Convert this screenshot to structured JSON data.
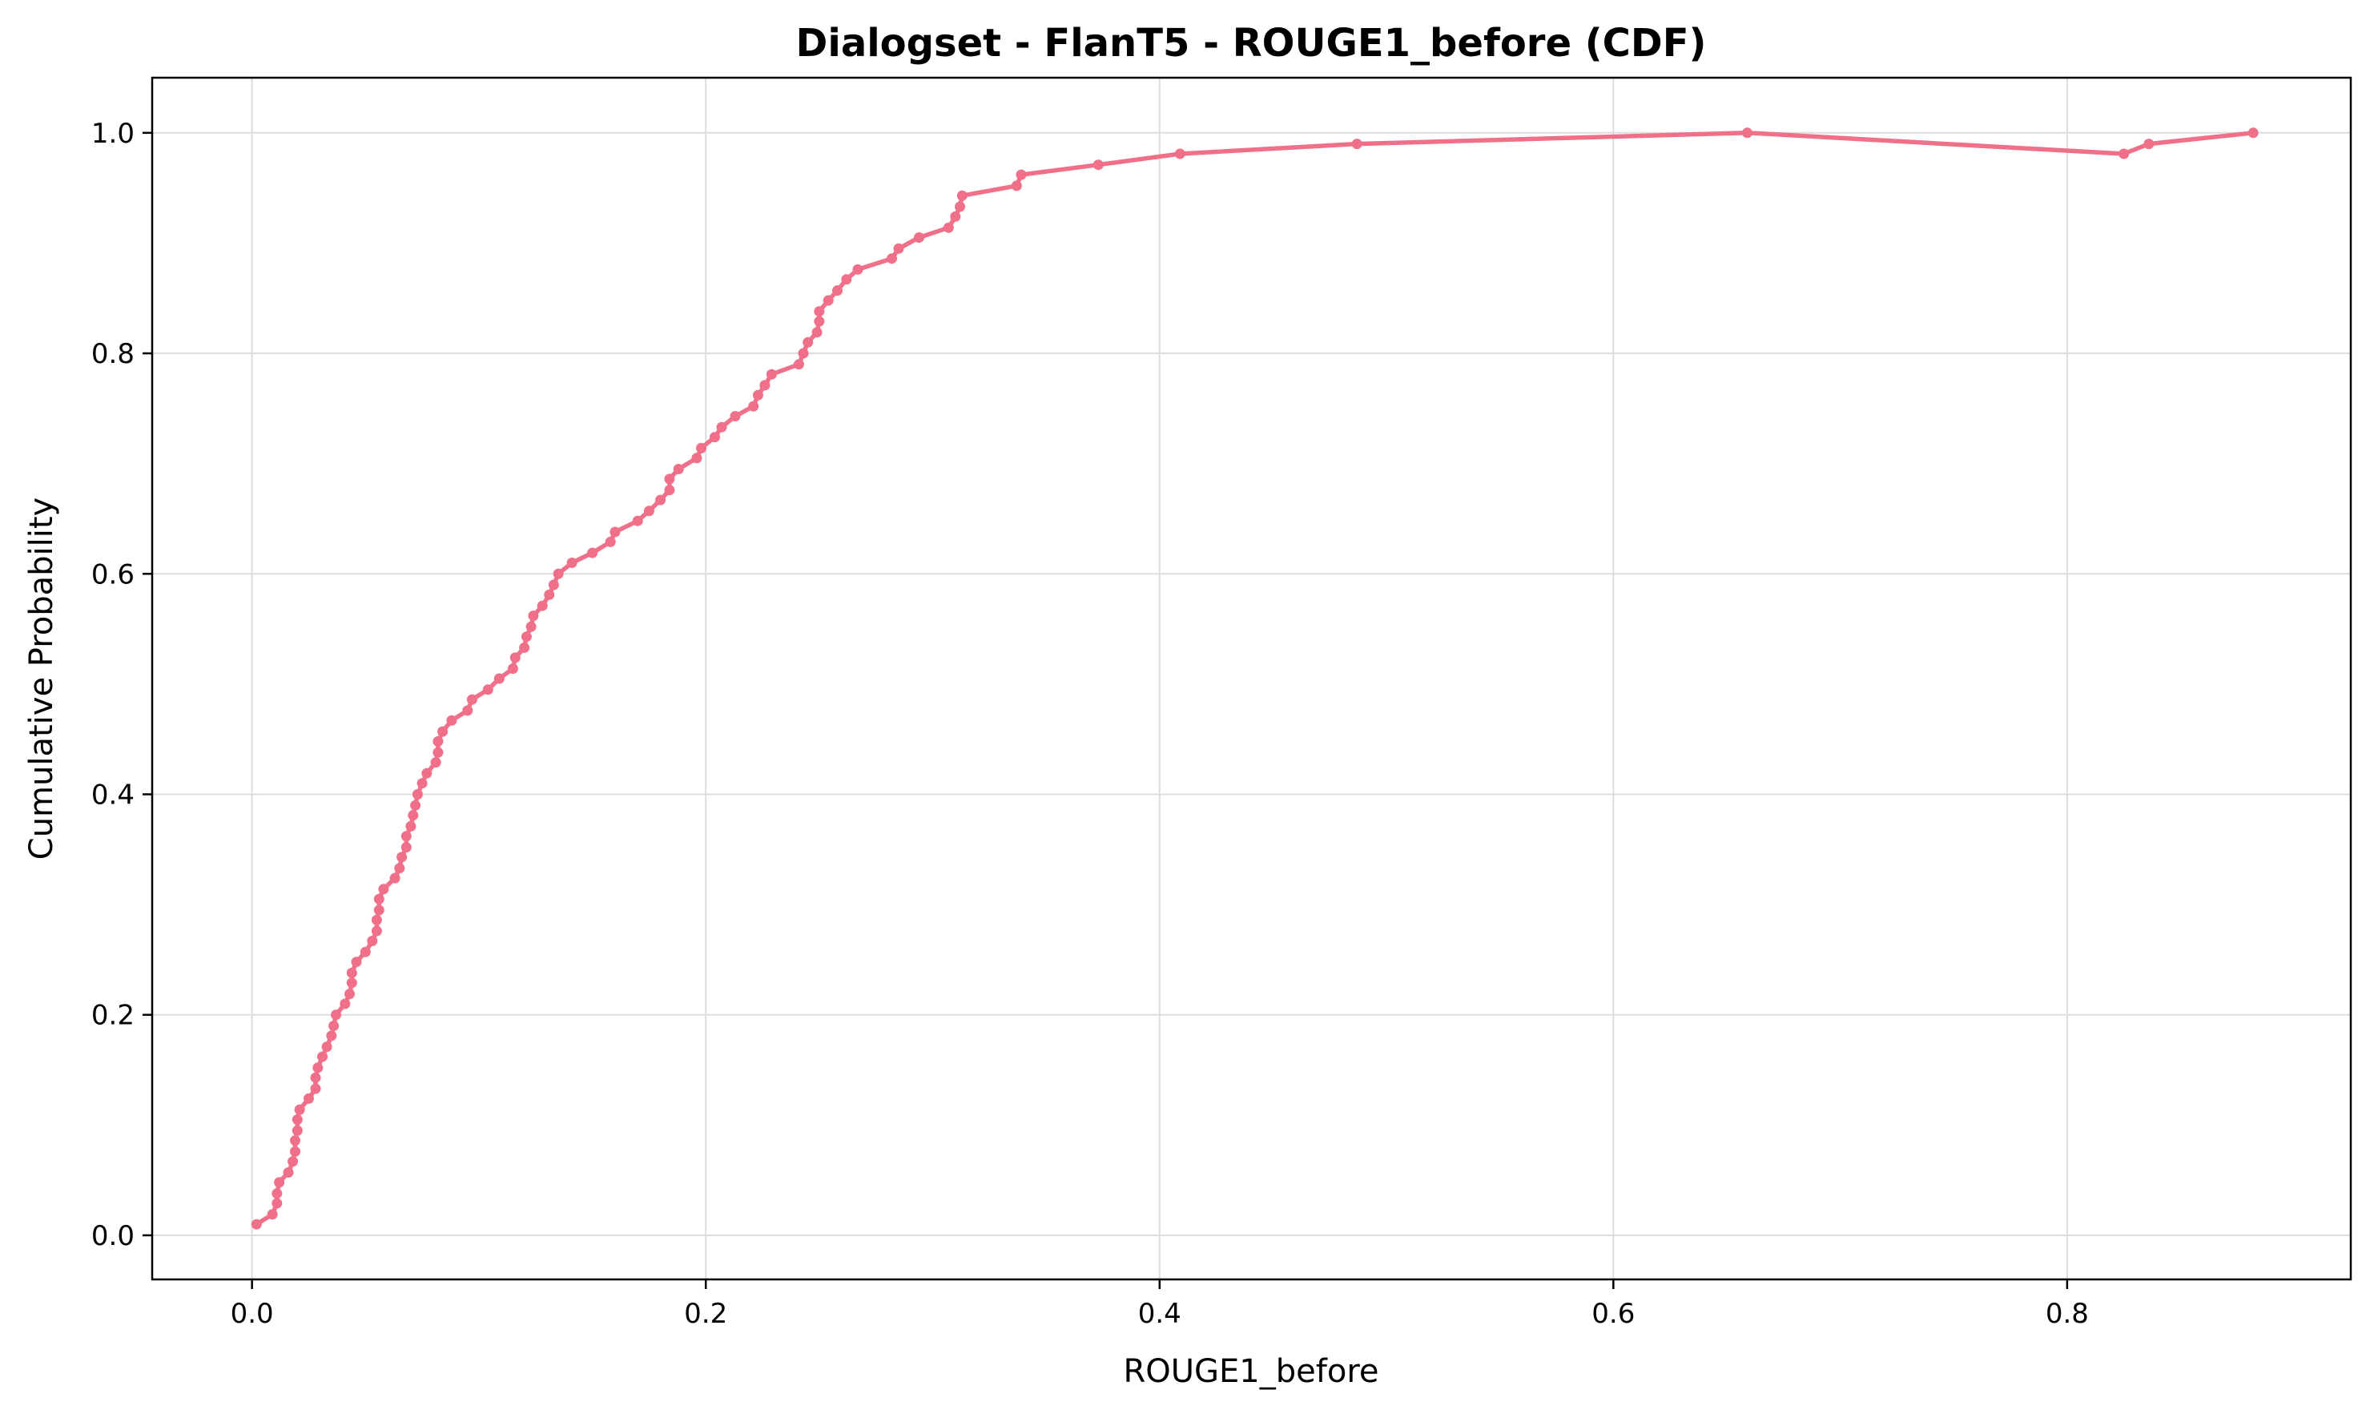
{
  "chart_data": {
    "type": "line",
    "title": "Dialogset - FlanT5 - ROUGE1_before (CDF)",
    "xlabel": "ROUGE1_before",
    "ylabel": "Cumulative Probability",
    "xlim": [
      -0.044,
      0.925
    ],
    "ylim": [
      -0.04,
      1.05
    ],
    "grid": true,
    "line_color": "#f07089",
    "x_ticks": [
      0.0,
      0.2,
      0.4,
      0.6,
      0.8
    ],
    "x_tick_labels": [
      "0.0",
      "0.2",
      "0.4",
      "0.6",
      "0.8"
    ],
    "y_ticks": [
      0.0,
      0.2,
      0.4,
      0.6,
      0.8,
      1.0
    ],
    "y_tick_labels": [
      "0.0",
      "0.2",
      "0.4",
      "0.6",
      "0.8",
      "1.0"
    ],
    "series": [
      {
        "x": [
          0.002,
          0.009,
          0.011,
          0.011,
          0.012,
          0.016,
          0.018,
          0.019,
          0.019,
          0.02,
          0.02,
          0.021,
          0.025,
          0.028,
          0.028,
          0.029,
          0.031,
          0.033,
          0.035,
          0.036,
          0.037,
          0.041,
          0.043,
          0.044,
          0.044,
          0.046,
          0.05,
          0.053,
          0.055,
          0.055,
          0.056,
          0.056,
          0.058,
          0.063,
          0.065,
          0.066,
          0.068,
          0.068,
          0.07,
          0.071,
          0.072,
          0.073,
          0.075,
          0.077,
          0.081,
          0.082,
          0.082,
          0.084,
          0.088,
          0.095,
          0.097,
          0.104,
          0.109,
          0.115,
          0.116,
          0.12,
          0.121,
          0.123,
          0.124,
          0.128,
          0.131,
          0.133,
          0.135,
          0.141,
          0.15,
          0.158,
          0.16,
          0.17,
          0.175,
          0.18,
          0.184,
          0.184,
          0.188,
          0.196,
          0.198,
          0.204,
          0.207,
          0.213,
          0.221,
          0.223,
          0.226,
          0.229,
          0.241,
          0.243,
          0.245,
          0.249,
          0.25,
          0.25,
          0.254,
          0.258,
          0.262,
          0.267,
          0.282,
          0.285,
          0.294,
          0.307,
          0.31,
          0.312,
          0.313,
          0.337,
          0.339,
          0.373,
          0.409,
          0.487,
          0.659,
          0.825,
          0.836,
          0.882
        ],
        "y": [
          0.01,
          0.019,
          0.029,
          0.038,
          0.048,
          0.057,
          0.067,
          0.076,
          0.086,
          0.095,
          0.105,
          0.114,
          0.124,
          0.133,
          0.143,
          0.152,
          0.162,
          0.171,
          0.181,
          0.19,
          0.2,
          0.21,
          0.219,
          0.229,
          0.238,
          0.248,
          0.257,
          0.267,
          0.276,
          0.286,
          0.295,
          0.305,
          0.314,
          0.324,
          0.333,
          0.343,
          0.352,
          0.362,
          0.371,
          0.381,
          0.39,
          0.4,
          0.41,
          0.419,
          0.429,
          0.438,
          0.448,
          0.457,
          0.467,
          0.476,
          0.486,
          0.495,
          0.505,
          0.514,
          0.524,
          0.533,
          0.543,
          0.552,
          0.562,
          0.571,
          0.581,
          0.59,
          0.6,
          0.61,
          0.619,
          0.629,
          0.638,
          0.648,
          0.657,
          0.667,
          0.676,
          0.686,
          0.695,
          0.705,
          0.714,
          0.724,
          0.733,
          0.743,
          0.752,
          0.762,
          0.771,
          0.781,
          0.79,
          0.8,
          0.81,
          0.819,
          0.829,
          0.838,
          0.848,
          0.857,
          0.867,
          0.876,
          0.886,
          0.895,
          0.905,
          0.914,
          0.924,
          0.933,
          0.943,
          0.952,
          0.962,
          0.971,
          0.981,
          0.99,
          1.0,
          0.981,
          0.99,
          1.0
        ]
      }
    ]
  }
}
